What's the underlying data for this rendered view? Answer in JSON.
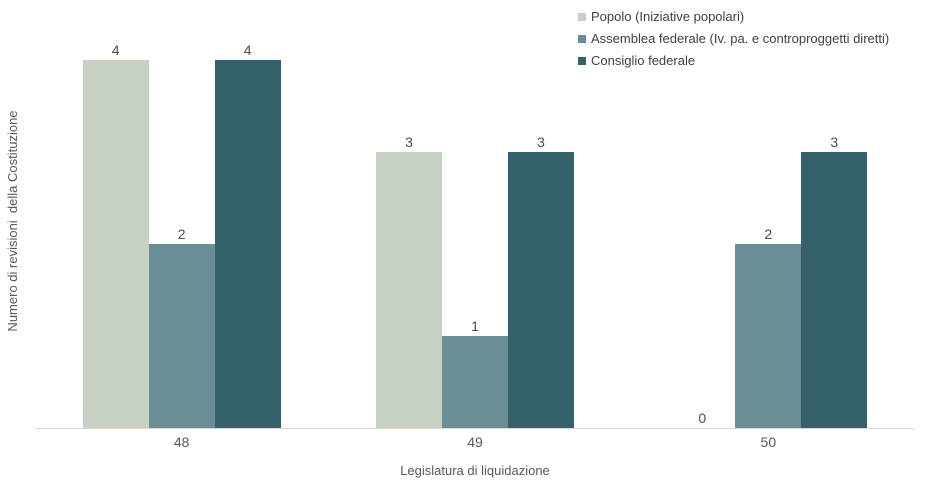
{
  "chart_data": {
    "type": "bar",
    "title": "",
    "categories": [
      "48",
      "49",
      "50"
    ],
    "series": [
      {
        "name": "Popolo (Iniziative popolari)",
        "color": "#c6d0c3",
        "values": [
          4,
          3,
          0
        ]
      },
      {
        "name": "Assemblea federale (Iv. pa. e controproggetti diretti)",
        "color": "#6a8e94",
        "values": [
          2,
          1,
          2
        ]
      },
      {
        "name": "Consiglio federale",
        "color": "#34616b",
        "values": [
          4,
          3,
          3
        ]
      }
    ],
    "xlabel": "Legislatura di liquidazione",
    "ylabel": "Numero di revisioni  della Costituzione",
    "ylim": [
      0,
      4
    ],
    "grid": false,
    "legend_position": "top-right",
    "data_labels": true,
    "axis_line_color": "#d9d9d9",
    "data_label_color": "#4d4d4d",
    "tick_label_color": "#595959"
  }
}
